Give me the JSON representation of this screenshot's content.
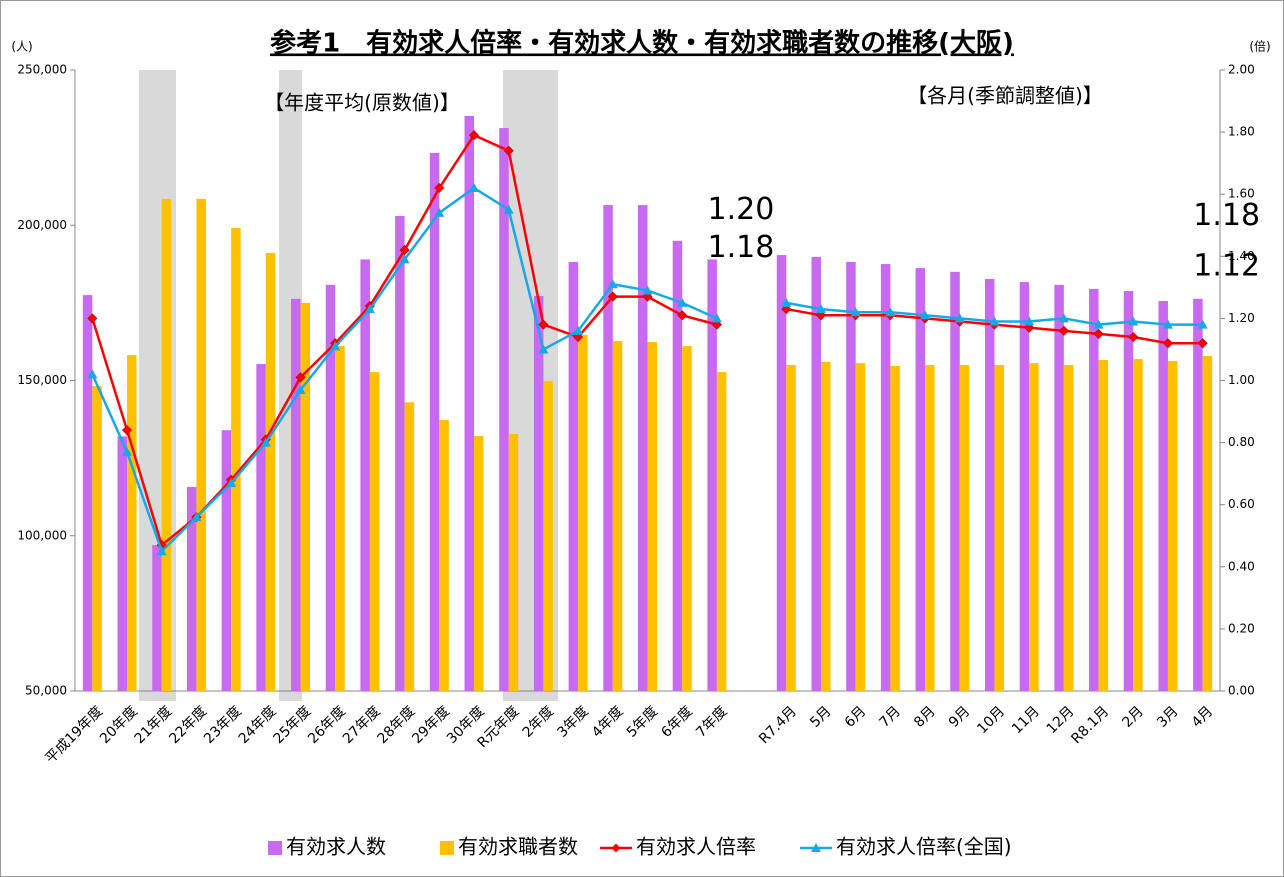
{
  "chart_data": {
    "type": "combo",
    "title": "参考1　有効求人倍率・有効求人数・有効求職者数の推移(大阪)",
    "y_label": "(人)",
    "y2_label": "(倍)",
    "annotations": [
      "【年度平均(原数値)】",
      "【各月(季節調整値)】"
    ],
    "categories": [
      "平成19年度",
      "20年度",
      "21年度",
      "22年度",
      "23年度",
      "24年度",
      "25年度",
      "26年度",
      "27年度",
      "28年度",
      "29年度",
      "30年度",
      "R元年度",
      "2年度",
      "3年度",
      "4年度",
      "5年度",
      "6年度",
      "7年度",
      null,
      "R7.4月",
      "5月",
      "6月",
      "7月",
      "8月",
      "9月",
      "10月",
      "11月",
      "12月",
      "R8.1月",
      "2月",
      "3月",
      "4月"
    ],
    "series": [
      {
        "name": "有効求人数",
        "type": "bar",
        "color": "#c86af0",
        "values": [
          177500,
          132000,
          97000,
          115700,
          134000,
          155300,
          176300,
          180800,
          189000,
          203000,
          223300,
          235200,
          231300,
          177200,
          188200,
          206500,
          206500,
          195000,
          189000,
          null,
          190400,
          189800,
          188200,
          187500,
          186200,
          185000,
          182700,
          181700,
          180800,
          179500,
          178800,
          175600,
          176300
        ]
      },
      {
        "name": "有効求職者数",
        "type": "bar",
        "color": "#ffc000",
        "values": [
          148200,
          158200,
          208500,
          208500,
          199100,
          191100,
          175000,
          161100,
          152700,
          143000,
          137300,
          132100,
          132800,
          149800,
          164700,
          162700,
          162400,
          161100,
          152700,
          null,
          155000,
          156000,
          155600,
          154700,
          155000,
          155000,
          155000,
          155600,
          155000,
          156600,
          156900,
          156300,
          157900
        ]
      },
      {
        "name": "有効求人倍率",
        "type": "line",
        "axis": "y2",
        "color": "#ff0000",
        "marker": "diamond",
        "label_color": "#ff0000",
        "values": [
          1.2,
          0.84,
          0.47,
          0.56,
          0.68,
          0.81,
          1.01,
          1.12,
          1.24,
          1.42,
          1.62,
          1.79,
          1.74,
          1.18,
          1.14,
          1.27,
          1.27,
          1.21,
          1.18,
          null,
          1.23,
          1.21,
          1.21,
          1.21,
          1.2,
          1.19,
          1.18,
          1.17,
          1.16,
          1.15,
          1.14,
          1.12,
          1.12
        ],
        "value_labels": [
          null,
          null,
          null,
          null,
          null,
          null,
          null,
          null,
          null,
          null,
          null,
          null,
          null,
          null,
          null,
          null,
          null,
          null,
          "1.18",
          null,
          null,
          null,
          null,
          null,
          null,
          null,
          null,
          null,
          null,
          null,
          null,
          null,
          "1.12"
        ]
      },
      {
        "name": "有効求人倍率(全国)",
        "type": "line",
        "axis": "y2",
        "color": "#18a8e8",
        "marker": "triangle",
        "label_color": "#1f6fb5",
        "values": [
          1.02,
          0.77,
          0.45,
          0.56,
          0.67,
          0.8,
          0.97,
          1.11,
          1.23,
          1.39,
          1.54,
          1.62,
          1.55,
          1.1,
          1.16,
          1.31,
          1.29,
          1.25,
          1.2,
          null,
          1.25,
          1.23,
          1.22,
          1.22,
          1.21,
          1.2,
          1.19,
          1.19,
          1.2,
          1.18,
          1.19,
          1.18,
          1.18
        ],
        "value_labels": [
          null,
          null,
          null,
          null,
          null,
          null,
          null,
          null,
          null,
          null,
          null,
          null,
          null,
          null,
          null,
          null,
          null,
          null,
          "1.20",
          null,
          null,
          null,
          null,
          null,
          null,
          null,
          null,
          null,
          null,
          null,
          null,
          null,
          "1.18"
        ]
      }
    ],
    "ylim": [
      50000,
      250000
    ],
    "yticks": [
      {
        "value": 50000,
        "label": "50,000"
      },
      {
        "value": 100000,
        "label": "100,000"
      },
      {
        "value": 150000,
        "label": "150,000"
      },
      {
        "value": 200000,
        "label": "200,000"
      },
      {
        "value": 250000,
        "label": "250,000"
      }
    ],
    "y2lim": [
      0,
      2
    ],
    "y2ticks": [
      {
        "value": 0,
        "label": "0.00"
      },
      {
        "value": 0.2,
        "label": "0.20"
      },
      {
        "value": 0.4,
        "label": "0.40"
      },
      {
        "value": 0.6,
        "label": "0.60"
      },
      {
        "value": 0.8,
        "label": "0.80"
      },
      {
        "value": 1,
        "label": "1.00"
      },
      {
        "value": 1.2,
        "label": "1.20"
      },
      {
        "value": 1.4,
        "label": "1.40"
      },
      {
        "value": 1.6,
        "label": "1.60"
      },
      {
        "value": 1.8,
        "label": "1.80"
      },
      {
        "value": 2,
        "label": "2.00"
      }
    ],
    "grid": false,
    "legend": "bottom"
  }
}
